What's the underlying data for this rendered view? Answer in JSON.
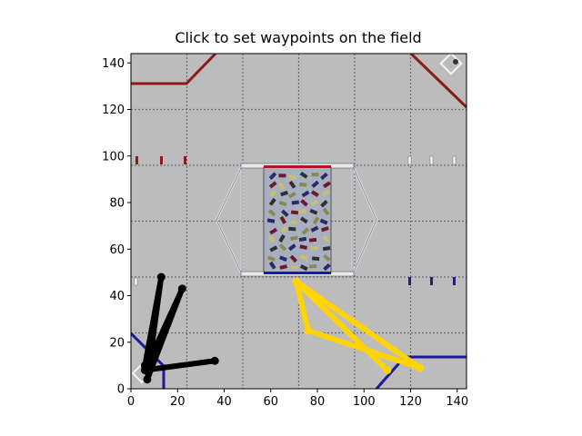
{
  "window": {
    "title": "Click to set waypoints on the field"
  },
  "chart_data": {
    "type": "line",
    "title": "Click to set waypoints on the field",
    "xlim": [
      0,
      144
    ],
    "ylim": [
      0,
      144
    ],
    "xticks": [
      0,
      20,
      40,
      60,
      80,
      100,
      120,
      140
    ],
    "yticks": [
      0,
      20,
      40,
      60,
      80,
      100,
      120,
      140
    ],
    "background": "field-image",
    "series": [
      {
        "color": "#000000",
        "x": [
          36,
          6,
          22,
          7,
          13,
          6
        ],
        "y": [
          12,
          8,
          43,
          4,
          48,
          10
        ]
      },
      {
        "color": "#ffd400",
        "x": [
          71,
          76,
          124,
          71,
          110
        ],
        "y": [
          46,
          25,
          9,
          46,
          8
        ]
      }
    ]
  }
}
